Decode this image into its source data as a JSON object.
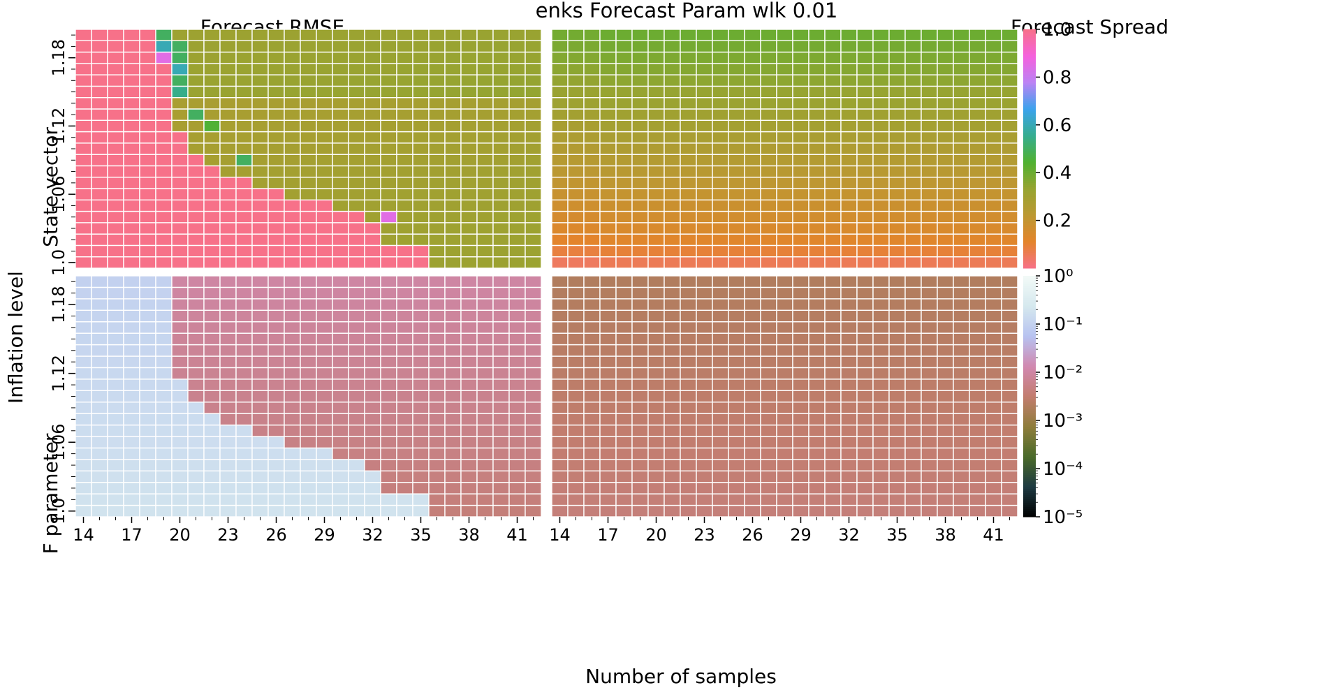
{
  "chart_data": {
    "type": "heatmap",
    "title": "enks Forecast Param wlk 0.01",
    "xlabel": "Number of samples",
    "ylabel": "Inflation level",
    "x": [
      14,
      15,
      16,
      17,
      18,
      19,
      20,
      21,
      22,
      23,
      24,
      25,
      26,
      27,
      28,
      29,
      30,
      31,
      32,
      33,
      34,
      35,
      36,
      37,
      38,
      39,
      40,
      41,
      42
    ],
    "x_tick_labels": [
      "14",
      "17",
      "20",
      "23",
      "26",
      "29",
      "32",
      "35",
      "38",
      "41"
    ],
    "y": [
      1.0,
      1.01,
      1.02,
      1.03,
      1.04,
      1.05,
      1.06,
      1.07,
      1.08,
      1.09,
      1.1,
      1.11,
      1.12,
      1.13,
      1.14,
      1.15,
      1.16,
      1.17,
      1.18,
      1.19,
      1.2
    ],
    "y_tick_labels": [
      "1.0",
      "1.06",
      "1.12",
      "1.18"
    ],
    "rows": [
      {
        "label": "State vector",
        "colorbar": {
          "scale": "linear",
          "range": [
            0,
            1.0
          ],
          "ticks": [
            "0.2",
            "0.4",
            "0.6",
            "0.8",
            "1.0"
          ]
        }
      },
      {
        "label": "F parameter",
        "colorbar": {
          "scale": "log",
          "range": [
            1e-05,
            1
          ],
          "ticks": [
            "10⁰",
            "10⁻¹",
            "10⁻²",
            "10⁻³",
            "10⁻⁴",
            "10⁻⁵"
          ]
        }
      }
    ],
    "columns": [
      "Forecast RMSE",
      "Forecast Spread"
    ],
    "divergence_boundary_min_samples_by_inflation": [
      36,
      36,
      33,
      33,
      32,
      30,
      27,
      25,
      23,
      22,
      21,
      21,
      20,
      20,
      20,
      20,
      20,
      20,
      20,
      20,
      20
    ],
    "anomalous_cells_rmse_state": [
      {
        "x": 19,
        "y": 1.2,
        "value": 0.5
      },
      {
        "x": 19,
        "y": 1.19,
        "value": 0.6
      },
      {
        "x": 19,
        "y": 1.18,
        "value": 0.85
      },
      {
        "x": 20,
        "y": 1.19,
        "value": 0.5
      },
      {
        "x": 20,
        "y": 1.18,
        "value": 0.5
      },
      {
        "x": 20,
        "y": 1.17,
        "value": 0.6
      },
      {
        "x": 20,
        "y": 1.16,
        "value": 0.5
      },
      {
        "x": 20,
        "y": 1.15,
        "value": 0.55
      },
      {
        "x": 21,
        "y": 1.13,
        "value": 0.5
      },
      {
        "x": 22,
        "y": 1.12,
        "value": 0.45
      },
      {
        "x": 24,
        "y": 1.09,
        "value": 0.5
      },
      {
        "x": 33,
        "y": 1.04,
        "value": 0.85
      }
    ],
    "converged_rmse_state_range": [
      0.26,
      0.38
    ],
    "diverged_rmse_state_value": 1.0,
    "spread_state_range": [
      0.06,
      0.4
    ],
    "rmse_param_converged_range": [
      0.004,
      0.01
    ],
    "rmse_param_diverged_range": [
      0.1,
      0.3
    ],
    "spread_param_range": [
      0.002,
      0.004
    ]
  },
  "colors": {
    "diverged": "#f5708f",
    "cmap_linear": [
      "#f77189",
      "#e3842b",
      "#bb9832",
      "#97a431",
      "#50b131",
      "#36ad8f",
      "#3ba3ec",
      "#bb83f4",
      "#f561dd",
      "#f77189"
    ],
    "cmap_log": [
      "#000000",
      "#1e3a42",
      "#4a6a2a",
      "#8e7d3b",
      "#c27d6e",
      "#d188b0",
      "#b7c2f0",
      "#d5e8ee",
      "#f2faf7"
    ]
  }
}
